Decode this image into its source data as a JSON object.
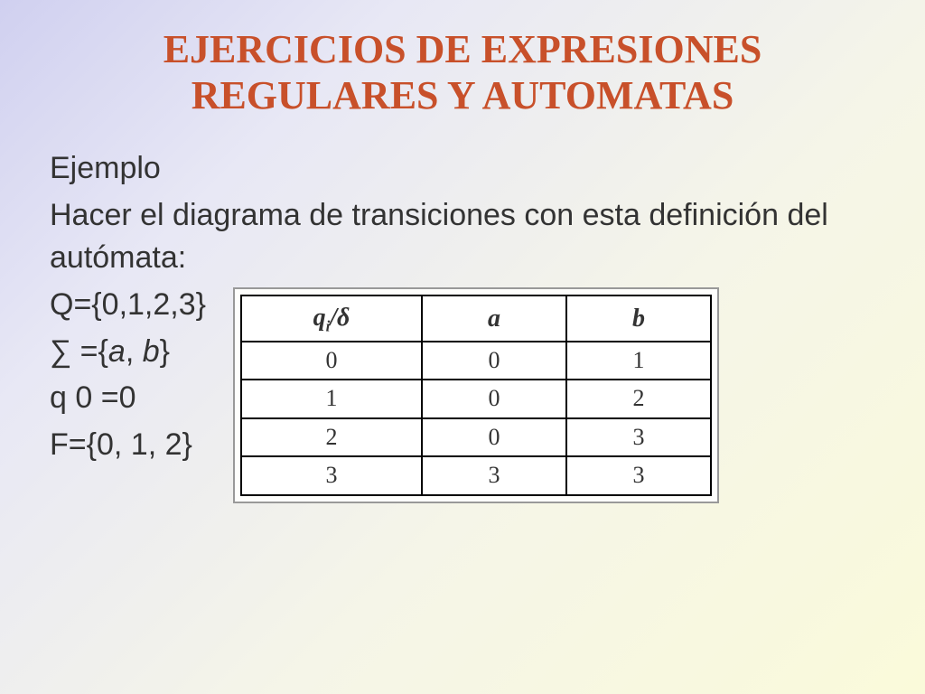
{
  "title": "EJERCICIOS DE EXPRESIONES REGULARES Y AUTOMATAS",
  "example_label": "Ejemplo",
  "instruction": "Hacer el diagrama de transiciones con esta definición del autómata:",
  "definitions": {
    "Q": "Q={0,1,2,3}",
    "sigma_prefix": "∑ =",
    "sigma_open": "{",
    "sigma_a": "a",
    "sigma_sep": ", ",
    "sigma_b": "b",
    "sigma_close": "}",
    "q0": "q 0 =0",
    "F": "F={0, 1, 2}"
  },
  "table": {
    "header_state_q": "q",
    "header_state_sub": "i",
    "header_state_slash": "/δ",
    "header_a": "a",
    "header_b": "b",
    "rows": [
      {
        "state": "0",
        "a": "0",
        "b": "1"
      },
      {
        "state": "1",
        "a": "0",
        "b": "2"
      },
      {
        "state": "2",
        "a": "0",
        "b": "3"
      },
      {
        "state": "3",
        "a": "3",
        "b": "3"
      }
    ]
  },
  "styling": {
    "title_color": "#c8502a",
    "text_color": "#333333",
    "table_border_color": "#000000",
    "table_outer_border": "#999999",
    "background_gradient": [
      "#d0d0f0",
      "#fafada"
    ],
    "title_fontsize": 44,
    "body_fontsize": 34,
    "table_header_fontsize": 28,
    "table_cell_fontsize": 26
  }
}
